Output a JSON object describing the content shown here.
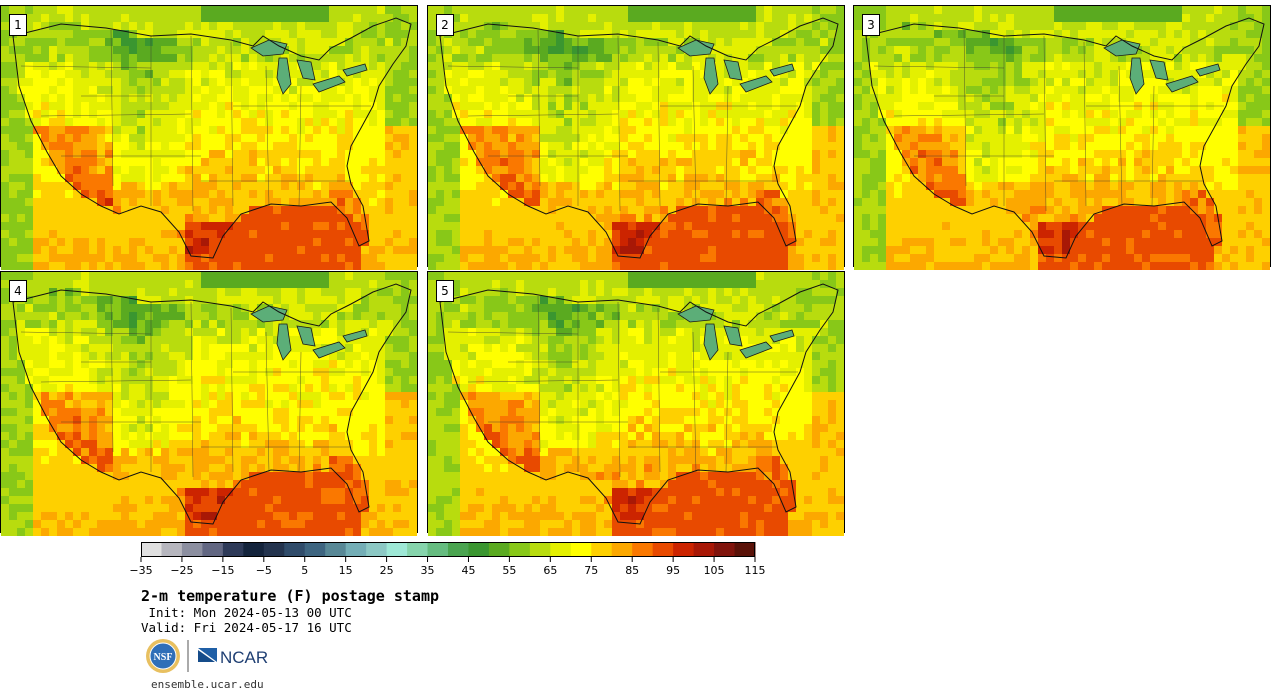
{
  "panels": [
    {
      "label": "1"
    },
    {
      "label": "2"
    },
    {
      "label": "3"
    },
    {
      "label": "4"
    },
    {
      "label": "5"
    }
  ],
  "colorbar": {
    "colors": [
      "#e0e0e0",
      "#b6b6be",
      "#8c8fa0",
      "#626782",
      "#2e3a58",
      "#14243c",
      "#24344e",
      "#304c6a",
      "#3e6580",
      "#588896",
      "#74aeb6",
      "#8cc8c4",
      "#9ee8d6",
      "#86d4ac",
      "#66bc80",
      "#4aa450",
      "#3a9630",
      "#5aaa20",
      "#88c818",
      "#b8dc0e",
      "#e4f000",
      "#ffff00",
      "#fed000",
      "#fca800",
      "#fa7800",
      "#e84a00",
      "#cc2400",
      "#a81806",
      "#80140c",
      "#5a1208"
    ],
    "tick_labels": [
      "−35",
      "−25",
      "−15",
      "−5",
      "5",
      "15",
      "25",
      "35",
      "45",
      "55",
      "65",
      "75",
      "85",
      "95",
      "105",
      "115"
    ]
  },
  "title": "2-m temperature (F) postage stamp",
  "init": " Init: Mon 2024-05-13 00 UTC",
  "valid": "Valid: Fri 2024-05-17 16 UTC",
  "logos": {
    "nsf": "NSF",
    "ncar": "NCAR"
  },
  "footer_url": "ensemble.ucar.edu"
}
